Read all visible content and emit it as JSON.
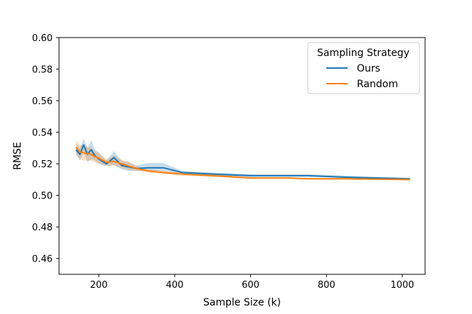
{
  "chart_data": {
    "type": "line",
    "title": "",
    "xlabel": "Sample Size (k)",
    "ylabel": "RMSE",
    "xlim": [
      95,
      1060
    ],
    "ylim": [
      0.45,
      0.6
    ],
    "xticks": [
      200,
      400,
      600,
      800,
      1000
    ],
    "yticks": [
      0.46,
      0.48,
      0.5,
      0.52,
      0.54,
      0.56,
      0.58,
      0.6
    ],
    "xtick_labels": [
      "200",
      "400",
      "600",
      "800",
      "1000"
    ],
    "ytick_labels": [
      "0.46",
      "0.48",
      "0.50",
      "0.52",
      "0.54",
      "0.56",
      "0.58",
      "0.60"
    ],
    "grid": false,
    "legend": {
      "title": "Sampling Strategy",
      "position": "top-right",
      "entries": [
        "Ours",
        "Random"
      ]
    },
    "series": [
      {
        "name": "Ours",
        "color": "#1f77b4",
        "x": [
          140,
          150,
          160,
          170,
          180,
          190,
          200,
          220,
          240,
          260,
          280,
          300,
          330,
          370,
          420,
          500,
          600,
          700,
          750,
          850,
          1020
        ],
        "y": [
          0.529,
          0.526,
          0.532,
          0.526,
          0.529,
          0.525,
          0.523,
          0.52,
          0.524,
          0.519,
          0.518,
          0.517,
          0.5175,
          0.5175,
          0.5145,
          0.5135,
          0.5125,
          0.5125,
          0.5125,
          0.5115,
          0.5105
        ],
        "lower": [
          0.526,
          0.522,
          0.527,
          0.521,
          0.523,
          0.522,
          0.52,
          0.5185,
          0.519,
          0.5165,
          0.5155,
          0.5155,
          0.5155,
          0.5155,
          0.5135,
          0.5125,
          0.5118,
          0.5118,
          0.5118,
          0.511,
          0.5102
        ],
        "upper": [
          0.533,
          0.53,
          0.536,
          0.53,
          0.535,
          0.529,
          0.527,
          0.522,
          0.528,
          0.522,
          0.521,
          0.519,
          0.5205,
          0.5205,
          0.5155,
          0.5145,
          0.5135,
          0.5135,
          0.5135,
          0.5125,
          0.511
        ]
      },
      {
        "name": "Random",
        "color": "#ff7f0e",
        "x": [
          140,
          150,
          160,
          170,
          180,
          190,
          200,
          220,
          240,
          260,
          280,
          300,
          330,
          370,
          420,
          500,
          600,
          700,
          750,
          850,
          1020
        ],
        "y": [
          0.5305,
          0.5275,
          0.527,
          0.5265,
          0.526,
          0.5245,
          0.5235,
          0.521,
          0.5215,
          0.52,
          0.5185,
          0.517,
          0.5155,
          0.5145,
          0.5135,
          0.5125,
          0.511,
          0.511,
          0.5105,
          0.5105,
          0.51
        ],
        "lower": [
          0.526,
          0.523,
          0.522,
          0.522,
          0.522,
          0.521,
          0.52,
          0.519,
          0.519,
          0.5175,
          0.516,
          0.5155,
          0.5145,
          0.5135,
          0.5125,
          0.5118,
          0.5105,
          0.5105,
          0.51,
          0.51,
          0.5097
        ],
        "upper": [
          0.535,
          0.532,
          0.532,
          0.531,
          0.53,
          0.528,
          0.527,
          0.523,
          0.525,
          0.5225,
          0.521,
          0.5185,
          0.5165,
          0.5155,
          0.5145,
          0.5132,
          0.5115,
          0.5115,
          0.511,
          0.511,
          0.5103
        ]
      }
    ]
  }
}
